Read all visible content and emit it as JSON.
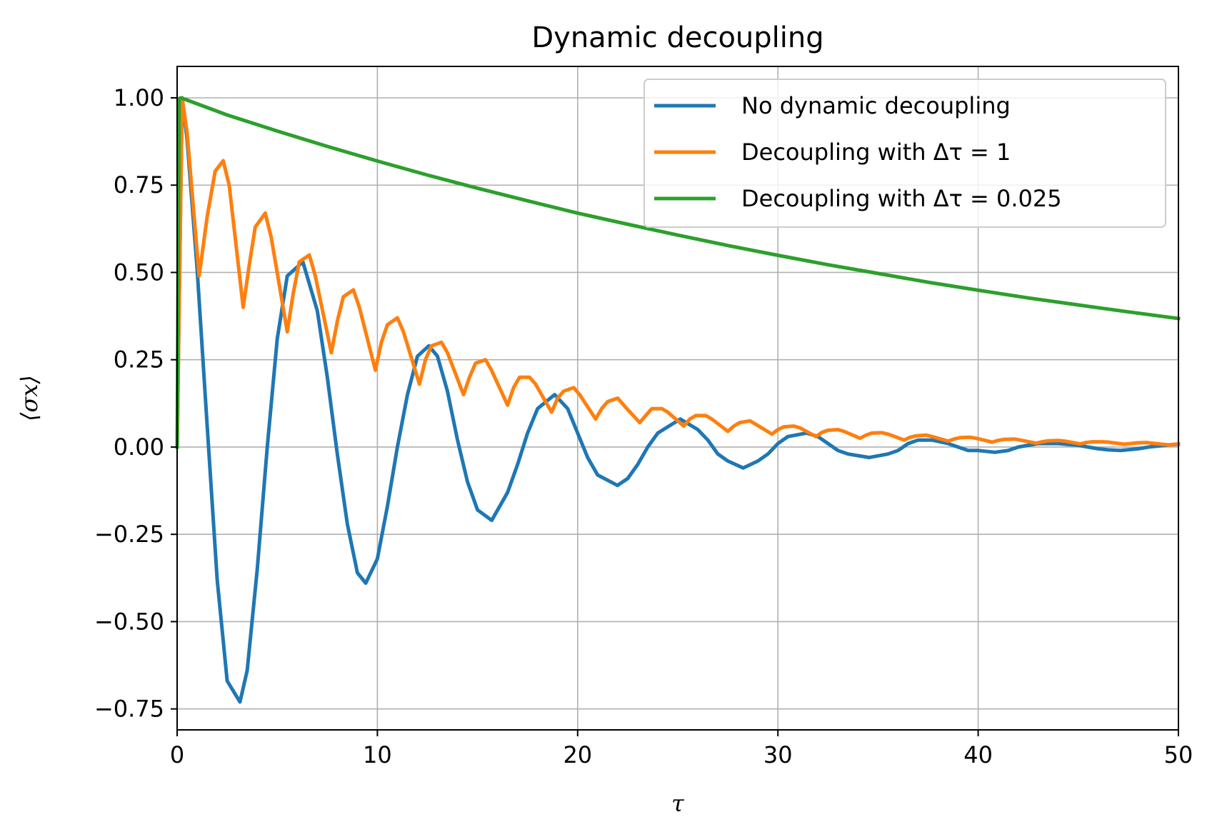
{
  "chart_data": {
    "type": "line",
    "title": "Dynamic decoupling",
    "xlabel": "τ",
    "ylabel": "⟨σx⟩",
    "xlim": [
      0,
      50
    ],
    "ylim": [
      -0.81,
      1.09
    ],
    "grid": true,
    "legend_position": "top-right",
    "x_ticks": [
      0,
      10,
      20,
      30,
      40,
      50
    ],
    "x_tick_labels": [
      "0",
      "10",
      "20",
      "30",
      "40",
      "50"
    ],
    "y_ticks": [
      -0.75,
      -0.5,
      -0.25,
      0.0,
      0.25,
      0.5,
      0.75,
      1.0
    ],
    "y_tick_labels": [
      "−0.75",
      "−0.50",
      "−0.25",
      "0.00",
      "0.25",
      "0.50",
      "0.75",
      "1.00"
    ],
    "series": [
      {
        "name": "No dynamic decoupling",
        "color": "#1f77b4",
        "x": [
          0,
          0.25,
          0.5,
          1,
          1.5,
          2,
          2.5,
          3.14,
          3.5,
          4,
          4.5,
          5,
          5.5,
          6.28,
          7,
          7.5,
          8,
          8.5,
          9,
          9.42,
          10,
          10.5,
          11,
          11.5,
          12,
          12.57,
          13,
          13.5,
          14,
          14.5,
          15,
          15.71,
          16.5,
          17,
          17.5,
          18,
          18.85,
          19.5,
          20,
          20.5,
          21,
          21.99,
          22.5,
          23,
          23.5,
          24,
          25.13,
          26,
          26.5,
          27,
          27.5,
          28.27,
          29,
          29.5,
          30,
          30.5,
          31.42,
          32,
          32.5,
          33,
          33.5,
          34.56,
          35.5,
          36,
          36.5,
          37,
          37.7,
          38.5,
          39,
          39.5,
          40,
          40.84,
          41.5,
          42,
          42.5,
          43,
          43.98,
          45,
          45.5,
          46,
          46.5,
          47.12,
          48,
          48.5,
          49,
          49.5,
          50
        ],
        "y": [
          0.0,
          1.0,
          0.88,
          0.51,
          0.06,
          -0.38,
          -0.67,
          -0.73,
          -0.64,
          -0.35,
          0.0,
          0.31,
          0.49,
          0.53,
          0.39,
          0.2,
          -0.02,
          -0.22,
          -0.36,
          -0.39,
          -0.32,
          -0.17,
          0.0,
          0.15,
          0.26,
          0.29,
          0.26,
          0.16,
          0.02,
          -0.1,
          -0.18,
          -0.21,
          -0.13,
          -0.05,
          0.04,
          0.11,
          0.15,
          0.11,
          0.04,
          -0.03,
          -0.08,
          -0.11,
          -0.09,
          -0.05,
          0.0,
          0.04,
          0.08,
          0.05,
          0.02,
          -0.02,
          -0.04,
          -0.06,
          -0.04,
          -0.02,
          0.01,
          0.03,
          0.04,
          0.03,
          0.01,
          -0.01,
          -0.02,
          -0.03,
          -0.02,
          -0.01,
          0.01,
          0.02,
          0.02,
          0.01,
          0.0,
          -0.01,
          -0.01,
          -0.015,
          -0.01,
          0.0,
          0.005,
          0.01,
          0.01,
          0.005,
          0.0,
          -0.005,
          -0.008,
          -0.01,
          -0.005,
          0.0,
          0.003,
          0.006,
          0.008
        ]
      },
      {
        "name": "Decoupling with Δτ = 1",
        "color": "#ff7f0e",
        "x": [
          0,
          0.25,
          0.5,
          1.1,
          1.5,
          1.9,
          2.3,
          2.6,
          3.3,
          3.6,
          3.9,
          4.4,
          4.7,
          5.5,
          5.8,
          6.1,
          6.6,
          6.9,
          7.7,
          8,
          8.3,
          8.8,
          9.1,
          9.9,
          10.2,
          10.5,
          11,
          11.3,
          12.1,
          12.4,
          12.7,
          13.2,
          13.5,
          14.3,
          14.6,
          14.9,
          15.4,
          15.7,
          16.5,
          16.8,
          17.1,
          17.6,
          17.9,
          18.7,
          19,
          19.3,
          19.8,
          20.1,
          20.9,
          21.2,
          21.5,
          22,
          22.3,
          23.1,
          23.4,
          23.7,
          24.2,
          24.5,
          25.3,
          25.6,
          25.9,
          26.4,
          26.7,
          27.5,
          27.8,
          28.1,
          28.6,
          28.9,
          29.7,
          30,
          30.3,
          30.8,
          31.1,
          31.9,
          32.2,
          32.5,
          33,
          33.3,
          34.1,
          34.4,
          34.7,
          35.2,
          35.5,
          36.3,
          36.6,
          36.9,
          37.4,
          37.7,
          38.5,
          38.8,
          39.1,
          39.6,
          39.9,
          40.7,
          41,
          41.3,
          41.8,
          42.1,
          42.9,
          43.2,
          43.5,
          44,
          44.3,
          45.1,
          45.4,
          45.7,
          46.2,
          46.5,
          47.3,
          47.6,
          47.9,
          48.4,
          48.7,
          49.5,
          50
        ],
        "y": [
          0.0,
          1.0,
          0.9,
          0.49,
          0.66,
          0.79,
          0.82,
          0.75,
          0.4,
          0.52,
          0.63,
          0.67,
          0.6,
          0.33,
          0.44,
          0.53,
          0.55,
          0.49,
          0.27,
          0.36,
          0.43,
          0.45,
          0.4,
          0.22,
          0.3,
          0.35,
          0.37,
          0.33,
          0.18,
          0.25,
          0.29,
          0.3,
          0.27,
          0.15,
          0.2,
          0.24,
          0.25,
          0.22,
          0.12,
          0.17,
          0.2,
          0.2,
          0.18,
          0.1,
          0.14,
          0.16,
          0.17,
          0.15,
          0.08,
          0.11,
          0.13,
          0.14,
          0.12,
          0.07,
          0.09,
          0.11,
          0.11,
          0.1,
          0.06,
          0.08,
          0.09,
          0.09,
          0.08,
          0.045,
          0.06,
          0.07,
          0.075,
          0.065,
          0.037,
          0.05,
          0.058,
          0.06,
          0.055,
          0.03,
          0.042,
          0.048,
          0.05,
          0.045,
          0.025,
          0.034,
          0.04,
          0.041,
          0.037,
          0.02,
          0.028,
          0.032,
          0.034,
          0.03,
          0.017,
          0.023,
          0.027,
          0.028,
          0.025,
          0.014,
          0.019,
          0.022,
          0.023,
          0.02,
          0.011,
          0.015,
          0.018,
          0.019,
          0.017,
          0.009,
          0.013,
          0.015,
          0.015,
          0.014,
          0.008,
          0.01,
          0.012,
          0.013,
          0.011,
          0.006,
          0.009
        ]
      },
      {
        "name": "Decoupling with Δτ = 0.025",
        "color": "#2ca02c",
        "x": [
          0,
          0.1,
          0.2,
          2.5,
          5,
          7.5,
          10,
          12.5,
          15,
          17.5,
          20,
          22.5,
          25,
          27.5,
          30,
          32.5,
          35,
          37.5,
          40,
          42.5,
          45,
          47.5,
          50
        ],
        "y": [
          0.0,
          0.998,
          1.0,
          0.951,
          0.905,
          0.861,
          0.819,
          0.779,
          0.741,
          0.705,
          0.67,
          0.638,
          0.607,
          0.577,
          0.549,
          0.522,
          0.497,
          0.472,
          0.449,
          0.427,
          0.407,
          0.387,
          0.368
        ]
      }
    ]
  }
}
